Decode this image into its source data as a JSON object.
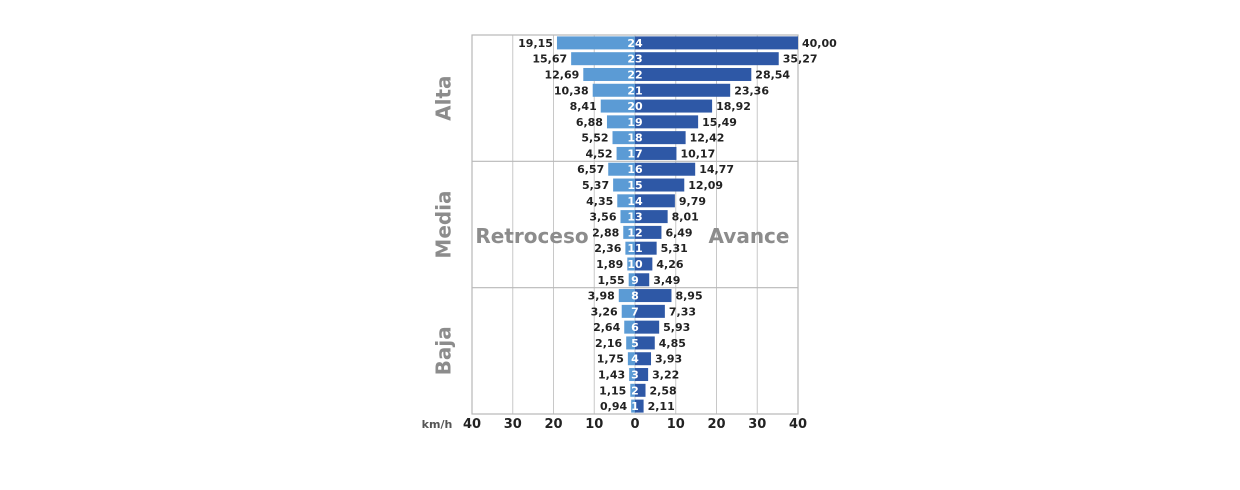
{
  "chart_data": {
    "type": "bar",
    "orientation": "horizontal-diverging",
    "unit_label": "km/h",
    "left_label": "Retroceso",
    "right_label": "Avance",
    "xlim": [
      -40,
      40
    ],
    "x_ticks": [
      "40",
      "30",
      "20",
      "10",
      "0",
      "10",
      "20",
      "30",
      "40"
    ],
    "grid": true,
    "colors": {
      "retroceso": "#5b9bd5",
      "avance": "#2e58a6"
    },
    "bands": [
      {
        "name": "Alta",
        "gears": [
          "17",
          "18",
          "19",
          "20",
          "21",
          "22",
          "23",
          "24"
        ]
      },
      {
        "name": "Media",
        "gears": [
          "9",
          "10",
          "11",
          "12",
          "13",
          "14",
          "15",
          "16"
        ]
      },
      {
        "name": "Baja",
        "gears": [
          "1",
          "2",
          "3",
          "4",
          "5",
          "6",
          "7",
          "8"
        ]
      }
    ],
    "gears": [
      {
        "gear": "24",
        "retroceso": 19.15,
        "avance": 40.0,
        "retroceso_label": "19,15",
        "avance_label": "40,00"
      },
      {
        "gear": "23",
        "retroceso": 15.67,
        "avance": 35.27,
        "retroceso_label": "15,67",
        "avance_label": "35,27"
      },
      {
        "gear": "22",
        "retroceso": 12.69,
        "avance": 28.54,
        "retroceso_label": "12,69",
        "avance_label": "28,54"
      },
      {
        "gear": "21",
        "retroceso": 10.38,
        "avance": 23.36,
        "retroceso_label": "10,38",
        "avance_label": "23,36"
      },
      {
        "gear": "20",
        "retroceso": 8.41,
        "avance": 18.92,
        "retroceso_label": "8,41",
        "avance_label": "18,92"
      },
      {
        "gear": "19",
        "retroceso": 6.88,
        "avance": 15.49,
        "retroceso_label": "6,88",
        "avance_label": "15,49"
      },
      {
        "gear": "18",
        "retroceso": 5.52,
        "avance": 12.42,
        "retroceso_label": "5,52",
        "avance_label": "12,42"
      },
      {
        "gear": "17",
        "retroceso": 4.52,
        "avance": 10.17,
        "retroceso_label": "4,52",
        "avance_label": "10,17"
      },
      {
        "gear": "16",
        "retroceso": 6.57,
        "avance": 14.77,
        "retroceso_label": "6,57",
        "avance_label": "14,77"
      },
      {
        "gear": "15",
        "retroceso": 5.37,
        "avance": 12.09,
        "retroceso_label": "5,37",
        "avance_label": "12,09"
      },
      {
        "gear": "14",
        "retroceso": 4.35,
        "avance": 9.79,
        "retroceso_label": "4,35",
        "avance_label": "9,79"
      },
      {
        "gear": "13",
        "retroceso": 3.56,
        "avance": 8.01,
        "retroceso_label": "3,56",
        "avance_label": "8,01"
      },
      {
        "gear": "12",
        "retroceso": 2.88,
        "avance": 6.49,
        "retroceso_label": "2,88",
        "avance_label": "6,49"
      },
      {
        "gear": "11",
        "retroceso": 2.36,
        "avance": 5.31,
        "retroceso_label": "2,36",
        "avance_label": "5,31"
      },
      {
        "gear": "10",
        "retroceso": 1.89,
        "avance": 4.26,
        "retroceso_label": "1,89",
        "avance_label": "4,26"
      },
      {
        "gear": "9",
        "retroceso": 1.55,
        "avance": 3.49,
        "retroceso_label": "1,55",
        "avance_label": "3,49"
      },
      {
        "gear": "8",
        "retroceso": 3.98,
        "avance": 8.95,
        "retroceso_label": "3,98",
        "avance_label": "8,95"
      },
      {
        "gear": "7",
        "retroceso": 3.26,
        "avance": 7.33,
        "retroceso_label": "3,26",
        "avance_label": "7,33"
      },
      {
        "gear": "6",
        "retroceso": 2.64,
        "avance": 5.93,
        "retroceso_label": "2,64",
        "avance_label": "5,93"
      },
      {
        "gear": "5",
        "retroceso": 2.16,
        "avance": 4.85,
        "retroceso_label": "2,16",
        "avance_label": "4,85"
      },
      {
        "gear": "4",
        "retroceso": 1.75,
        "avance": 3.93,
        "retroceso_label": "1,75",
        "avance_label": "3,93"
      },
      {
        "gear": "3",
        "retroceso": 1.43,
        "avance": 3.22,
        "retroceso_label": "1,43",
        "avance_label": "3,22"
      },
      {
        "gear": "2",
        "retroceso": 1.15,
        "avance": 2.58,
        "retroceso_label": "1,15",
        "avance_label": "2,58"
      },
      {
        "gear": "1",
        "retroceso": 0.94,
        "avance": 2.11,
        "retroceso_label": "0,94",
        "avance_label": "2,11"
      }
    ]
  }
}
